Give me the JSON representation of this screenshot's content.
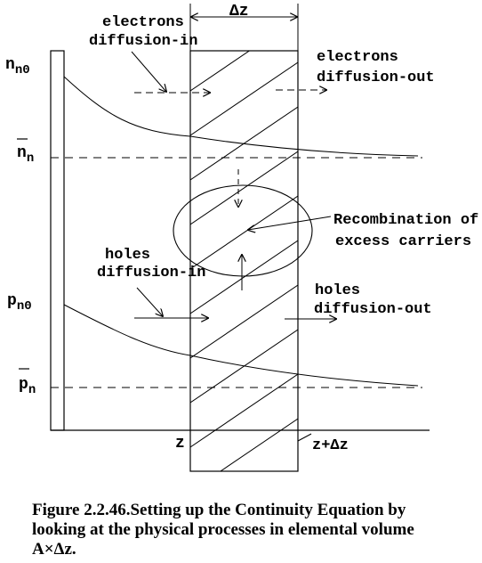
{
  "labels": {
    "delta_z": "Δz",
    "electrons_in_1": "electrons",
    "electrons_in_2": "diffusion-in",
    "electrons_out_1": "electrons",
    "electrons_out_2": "diffusion-out",
    "nn0": "n",
    "nn0_sub": "n0",
    "nn_bar": "n",
    "nn_bar_sub": "n",
    "recomb_1": "Recombination of",
    "recomb_2": "excess carriers",
    "holes_in_1": "holes",
    "holes_in_2": "diffusion-in",
    "holes_out_1": "holes",
    "holes_out_2": "diffusion-out",
    "pn0": "p",
    "pn0_sub": "n0",
    "pn_bar": "p",
    "pn_bar_sub": "n",
    "z": "z",
    "z_plus_dz": "z+Δz"
  },
  "caption": {
    "line1": "Figure 2.2.46.Setting up the Continuity Equation by",
    "line2": "looking at the physical processes in elemental volume",
    "line3": "A×Δz."
  }
}
